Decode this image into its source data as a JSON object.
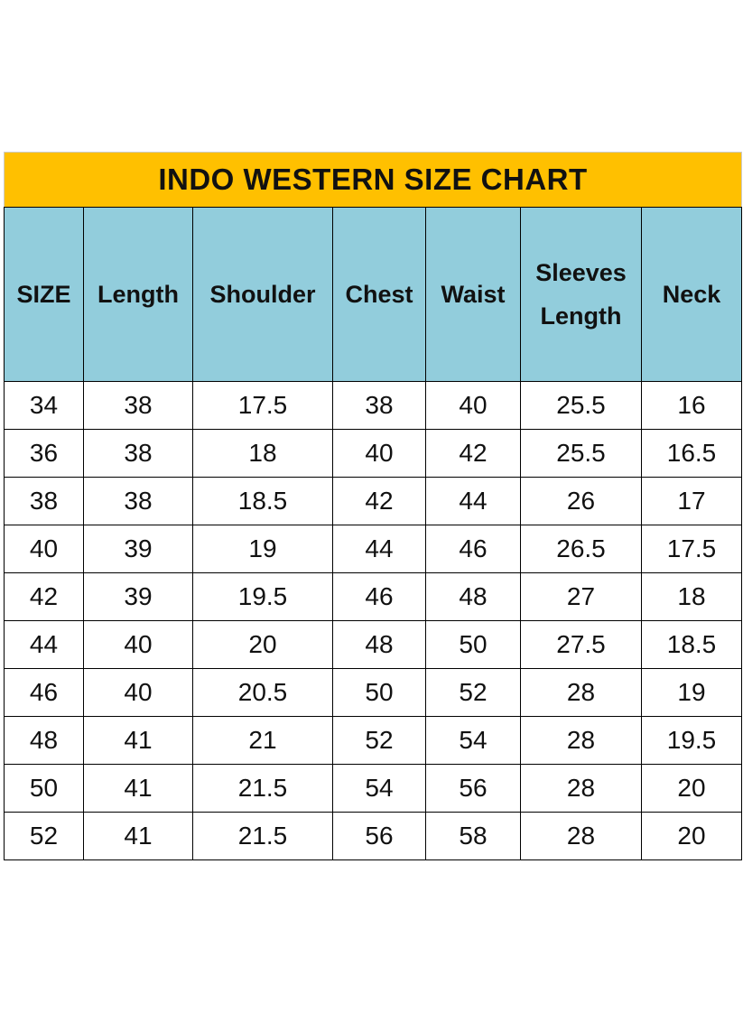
{
  "title": "INDO WESTERN SIZE CHART",
  "colors": {
    "title_bg": "#FFC000",
    "header_bg": "#92CDDC"
  },
  "headers": [
    "SIZE",
    "Length",
    "Shoulder",
    "Chest",
    "Waist",
    "Sleeves Length",
    "Neck"
  ],
  "rows": [
    [
      "34",
      "38",
      "17.5",
      "38",
      "40",
      "25.5",
      "16"
    ],
    [
      "36",
      "38",
      "18",
      "40",
      "42",
      "25.5",
      "16.5"
    ],
    [
      "38",
      "38",
      "18.5",
      "42",
      "44",
      "26",
      "17"
    ],
    [
      "40",
      "39",
      "19",
      "44",
      "46",
      "26.5",
      "17.5"
    ],
    [
      "42",
      "39",
      "19.5",
      "46",
      "48",
      "27",
      "18"
    ],
    [
      "44",
      "40",
      "20",
      "48",
      "50",
      "27.5",
      "18.5"
    ],
    [
      "46",
      "40",
      "20.5",
      "50",
      "52",
      "28",
      "19"
    ],
    [
      "48",
      "41",
      "21",
      "52",
      "54",
      "28",
      "19.5"
    ],
    [
      "50",
      "41",
      "21.5",
      "54",
      "56",
      "28",
      "20"
    ],
    [
      "52",
      "41",
      "21.5",
      "56",
      "58",
      "28",
      "20"
    ]
  ]
}
